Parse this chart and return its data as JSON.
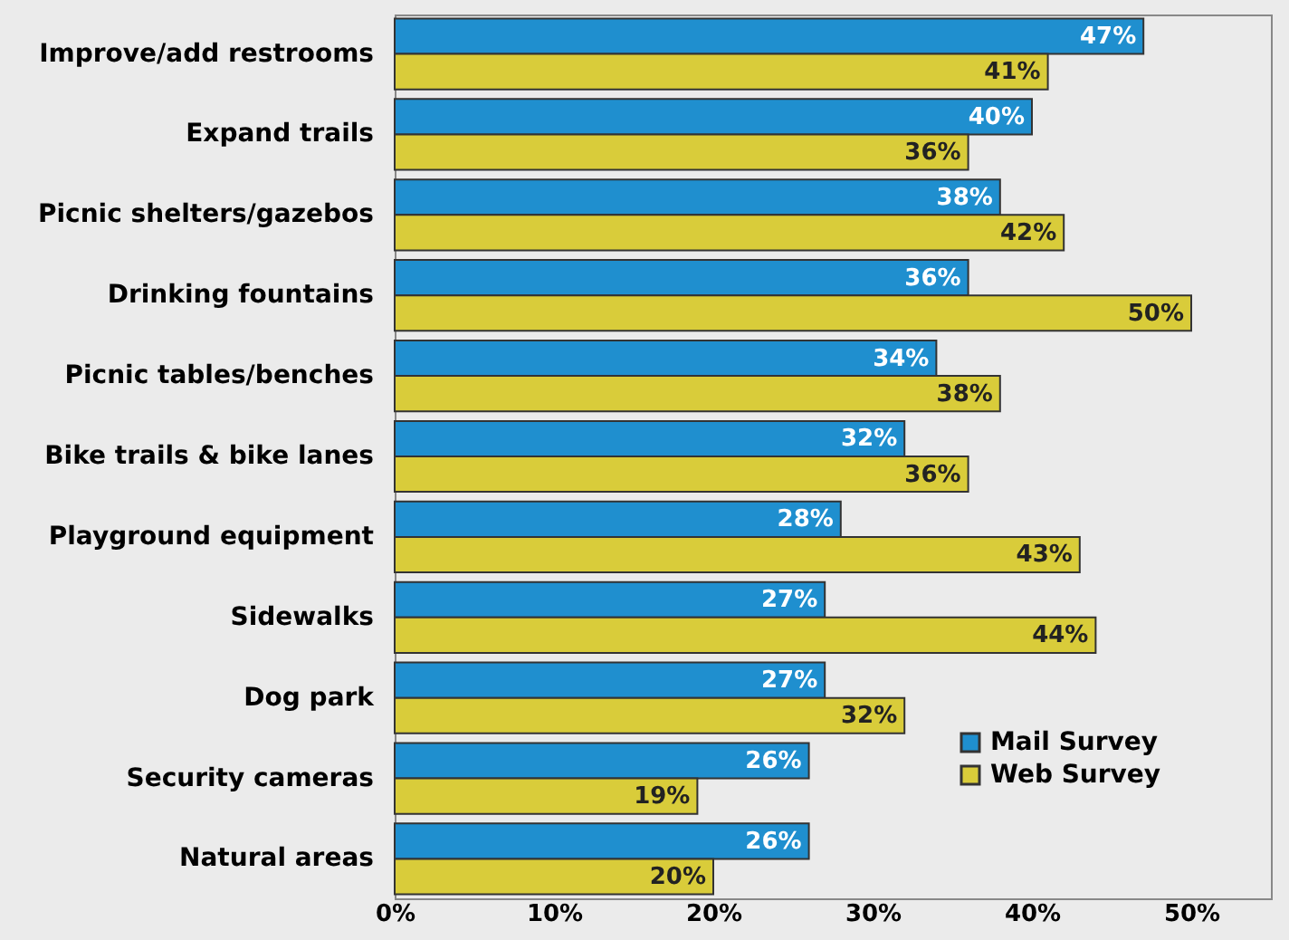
{
  "chart_data": {
    "type": "bar",
    "orientation": "horizontal",
    "categories": [
      "Improve/add restrooms",
      "Expand trails",
      "Picnic shelters/gazebos",
      "Drinking fountains",
      "Picnic tables/benches",
      "Bike trails & bike lanes",
      "Playground equipment",
      "Sidewalks",
      "Dog park",
      "Security cameras",
      "Natural areas"
    ],
    "series": [
      {
        "name": "Mail Survey",
        "color": "#1f8fcf",
        "values": [
          47,
          40,
          38,
          36,
          34,
          32,
          28,
          27,
          27,
          26,
          26
        ],
        "value_labels": [
          "47%",
          "40%",
          "38%",
          "36%",
          "34%",
          "32%",
          "28%",
          "27%",
          "27%",
          "26%",
          "26%"
        ]
      },
      {
        "name": "Web Survey",
        "color": "#d9cc3a",
        "values": [
          41,
          36,
          42,
          50,
          38,
          36,
          43,
          44,
          32,
          19,
          20
        ],
        "value_labels": [
          "41%",
          "36%",
          "42%",
          "50%",
          "38%",
          "36%",
          "43%",
          "44%",
          "32%",
          "19%",
          "20%"
        ]
      }
    ],
    "xlim": [
      0,
      55
    ],
    "xticks": [
      {
        "value": 0,
        "label": "0%"
      },
      {
        "value": 10,
        "label": "10%"
      },
      {
        "value": 20,
        "label": "20%"
      },
      {
        "value": 30,
        "label": "30%"
      },
      {
        "value": 40,
        "label": "40%"
      },
      {
        "value": 50,
        "label": "50%"
      }
    ],
    "grid": false,
    "legend": "bottom right"
  }
}
